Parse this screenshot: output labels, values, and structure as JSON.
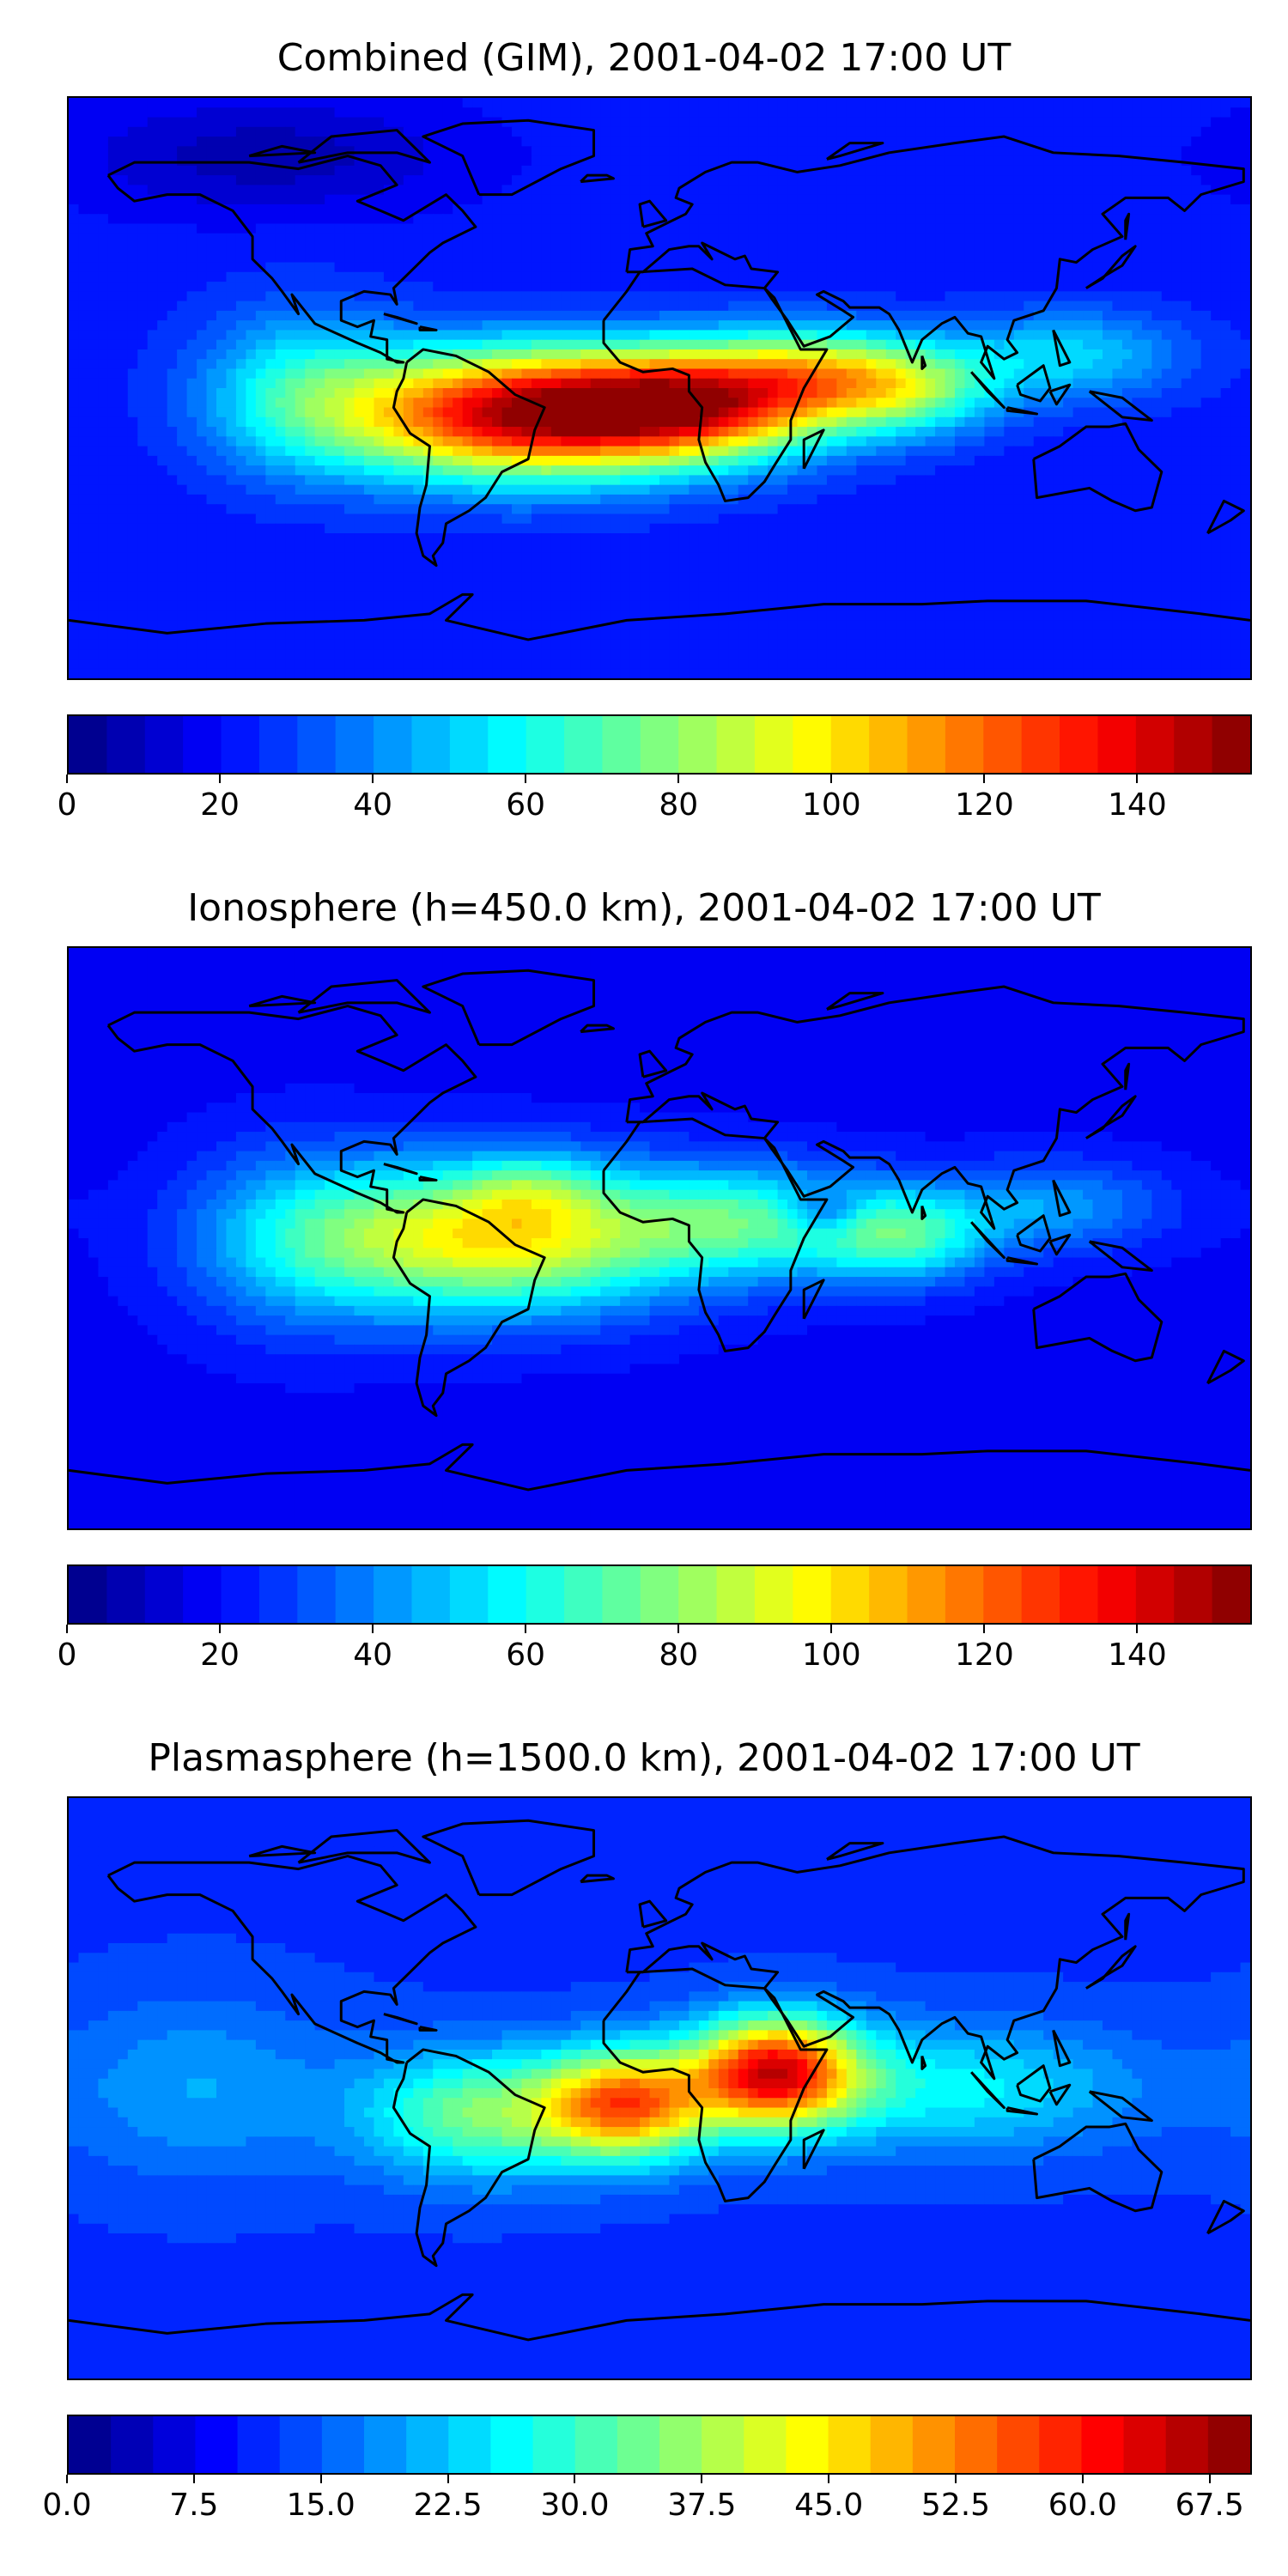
{
  "panels": [
    {
      "title": "Combined (GIM), 2001-04-02 17:00 UT",
      "colorbar": {
        "min": 0,
        "max": 155,
        "levels": 31,
        "ticks": [
          "0",
          "20",
          "40",
          "60",
          "80",
          "100",
          "120",
          "140"
        ],
        "tick_values": [
          0,
          20,
          40,
          60,
          80,
          100,
          120,
          140
        ]
      },
      "field": {
        "background": 22,
        "blobs": [
          {
            "lon": -45,
            "lat": -8,
            "amp": 115,
            "slon": 38,
            "slat": 14
          },
          {
            "lon": 10,
            "lat": -5,
            "amp": 95,
            "slon": 30,
            "slat": 12
          },
          {
            "lon": 45,
            "lat": 5,
            "amp": 45,
            "slon": 22,
            "slat": 10
          },
          {
            "lon": 75,
            "lat": 0,
            "amp": 50,
            "slon": 20,
            "slat": 10
          },
          {
            "lon": 125,
            "lat": 10,
            "amp": 30,
            "slon": 25,
            "slat": 10
          },
          {
            "lon": -110,
            "lat": 0,
            "amp": 30,
            "slon": 22,
            "slat": 18
          },
          {
            "lon": -120,
            "lat": 72,
            "amp": -15,
            "slon": 40,
            "slat": 12
          }
        ]
      }
    },
    {
      "title": "Ionosphere  (h=450.0 km), 2001-04-02 17:00 UT",
      "colorbar": {
        "min": 0,
        "max": 155,
        "levels": 31,
        "ticks": [
          "0",
          "20",
          "40",
          "60",
          "80",
          "100",
          "120",
          "140"
        ],
        "tick_values": [
          0,
          20,
          40,
          60,
          80,
          100,
          120,
          140
        ]
      },
      "field": {
        "background": 18,
        "blobs": [
          {
            "lon": -50,
            "lat": 0,
            "amp": 80,
            "slon": 40,
            "slat": 16
          },
          {
            "lon": -40,
            "lat": 15,
            "amp": 20,
            "slon": 14,
            "slat": 8
          },
          {
            "lon": 30,
            "lat": 5,
            "amp": 45,
            "slon": 30,
            "slat": 12
          },
          {
            "lon": 75,
            "lat": 0,
            "amp": 40,
            "slon": 18,
            "slat": 10
          },
          {
            "lon": 120,
            "lat": 10,
            "amp": 25,
            "slon": 25,
            "slat": 10
          },
          {
            "lon": 50,
            "lat": 8,
            "amp": -25,
            "slon": 8,
            "slat": 5
          },
          {
            "lon": -110,
            "lat": 0,
            "amp": 25,
            "slon": 25,
            "slat": 20
          }
        ]
      }
    },
    {
      "title": "Plasmasphere (h=1500.0 km), 2001-04-02 17:00 UT",
      "colorbar": {
        "min": 0,
        "max": 70,
        "levels": 28,
        "ticks": [
          "0.0",
          "7.5",
          "15.0",
          "22.5",
          "30.0",
          "37.5",
          "45.0",
          "52.5",
          "60.0",
          "67.5"
        ],
        "tick_values": [
          0,
          7.5,
          15,
          22.5,
          30,
          37.5,
          45,
          52.5,
          60,
          67.5
        ]
      },
      "field": {
        "background": 12,
        "blobs": [
          {
            "lon": 35,
            "lat": 5,
            "amp": 48,
            "slon": 18,
            "slat": 12
          },
          {
            "lon": -10,
            "lat": -5,
            "amp": 40,
            "slon": 18,
            "slat": 12
          },
          {
            "lon": -55,
            "lat": -8,
            "amp": 22,
            "slon": 25,
            "slat": 14
          },
          {
            "lon": 90,
            "lat": 0,
            "amp": 14,
            "slon": 40,
            "slat": 14
          },
          {
            "lon": -140,
            "lat": 0,
            "amp": 8,
            "slon": 30,
            "slat": 20
          }
        ]
      }
    }
  ],
  "colormap": "jet"
}
